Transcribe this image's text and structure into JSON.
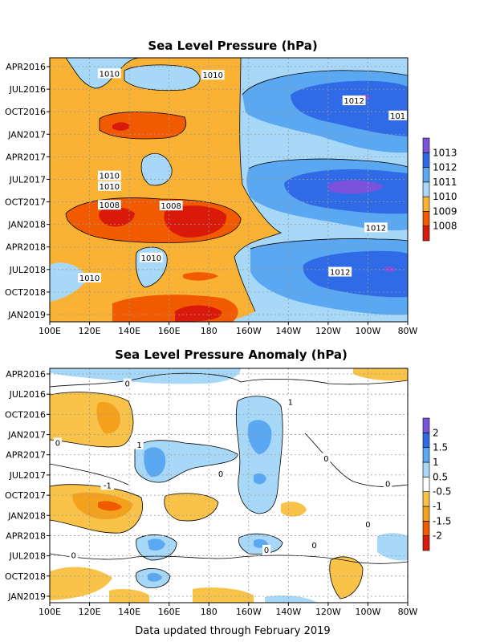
{
  "footer": "Data updated through February 2019",
  "chart_data": [
    {
      "type": "heatmap",
      "title": "Sea Level Pressure (hPa)",
      "y_ticks": [
        "APR2016",
        "JUL2016",
        "OCT2016",
        "JAN2017",
        "APR2017",
        "JUL2017",
        "OCT2017",
        "JAN2018",
        "APR2018",
        "JUL2018",
        "OCT2018",
        "JAN2019"
      ],
      "x_ticks": [
        "100E",
        "120E",
        "140E",
        "160E",
        "180",
        "160W",
        "140W",
        "120W",
        "100W",
        "80W"
      ],
      "colorbar": {
        "levels": [
          "1008",
          "1009",
          "1010",
          "1011",
          "1012",
          "1013"
        ],
        "colors": [
          "#d91a0a",
          "#f25a00",
          "#f9b233",
          "#a8d8f7",
          "#5aa7f2",
          "#2f6be6",
          "#7a52db"
        ]
      },
      "contour_labels": [
        {
          "text": "1010",
          "lon": 130,
          "month": 1.0
        },
        {
          "text": "1010",
          "lon": 182,
          "month": 1.2
        },
        {
          "text": "1012",
          "lon": 253,
          "month": 4.6
        },
        {
          "text": "101",
          "lon": 275,
          "month": 6.6
        },
        {
          "text": "1010",
          "lon": 130,
          "month": 14.6
        },
        {
          "text": "1010",
          "lon": 130,
          "month": 16.0
        },
        {
          "text": "1008",
          "lon": 130,
          "month": 18.5
        },
        {
          "text": "1008",
          "lon": 161,
          "month": 18.6
        },
        {
          "text": "1012",
          "lon": 264,
          "month": 21.5
        },
        {
          "text": "1010",
          "lon": 151,
          "month": 25.5
        },
        {
          "text": "1012",
          "lon": 246,
          "month": 27.4
        },
        {
          "text": "1010",
          "lon": 120,
          "month": 28.2
        }
      ]
    },
    {
      "type": "heatmap",
      "title": "Sea Level Pressure Anomaly (hPa)",
      "y_ticks": [
        "APR2016",
        "JUL2016",
        "OCT2016",
        "JAN2017",
        "APR2017",
        "JUL2017",
        "OCT2017",
        "JAN2018",
        "APR2018",
        "JUL2018",
        "OCT2018",
        "JAN2019"
      ],
      "x_ticks": [
        "100E",
        "120E",
        "140E",
        "160E",
        "180",
        "160W",
        "140W",
        "120W",
        "100W",
        "80W"
      ],
      "colorbar": {
        "levels": [
          "-2",
          "-1.5",
          "-1",
          "-0.5",
          "0.5",
          "1",
          "1.5",
          "2"
        ],
        "colors": [
          "#d91a0a",
          "#f25a00",
          "#f4a21e",
          "#f9c34a",
          "#ffffff",
          "#a8d8f7",
          "#5aa7f2",
          "#2f6be6",
          "#7a52db"
        ]
      },
      "contour_labels": [
        {
          "text": "0",
          "lon": 139,
          "month": 1.5
        },
        {
          "text": "1",
          "lon": 221,
          "month": 4.2
        },
        {
          "text": "1",
          "lon": 145,
          "month": 10.6
        },
        {
          "text": "0",
          "lon": 104,
          "month": 10.3
        },
        {
          "text": "0",
          "lon": 239,
          "month": 12.6
        },
        {
          "text": "0",
          "lon": 186,
          "month": 14.9
        },
        {
          "text": "0",
          "lon": 270,
          "month": 16.4
        },
        {
          "text": "-1",
          "lon": 129,
          "month": 16.6
        },
        {
          "text": "0",
          "lon": 233,
          "month": 25.5
        },
        {
          "text": "0",
          "lon": 112,
          "month": 27.0
        },
        {
          "text": "0",
          "lon": 260,
          "month": 22.4
        },
        {
          "text": "0",
          "lon": 209,
          "month": 26.2
        }
      ]
    }
  ]
}
